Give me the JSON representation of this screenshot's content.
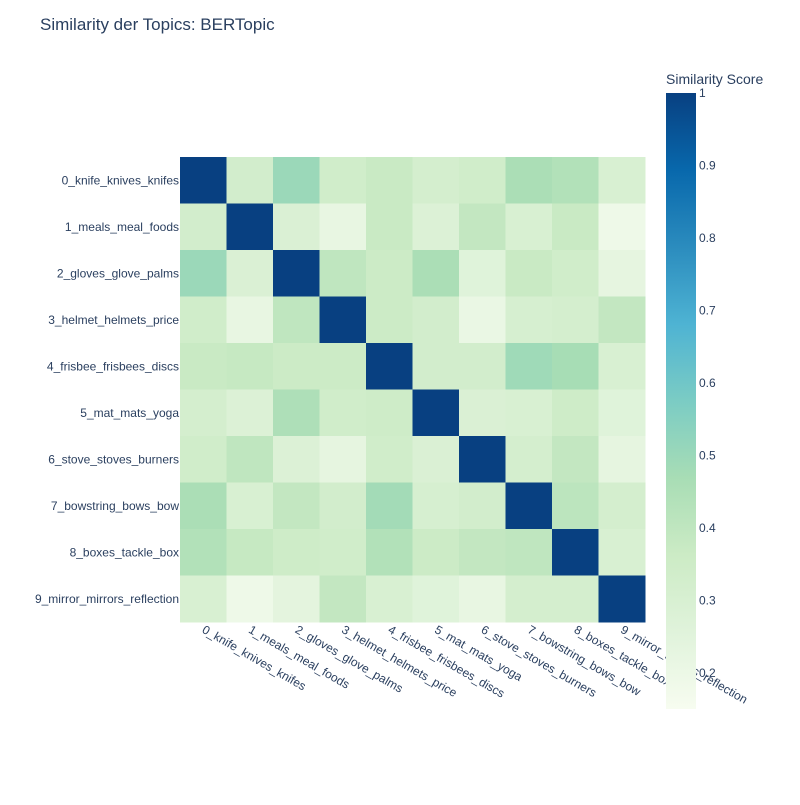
{
  "chart_data": {
    "type": "heatmap",
    "title": "Similarity der Topics: BERTopic",
    "x_categories": [
      "0_knife_knives_knifes",
      "1_meals_meal_foods",
      "2_gloves_glove_palms",
      "3_helmet_helmets_price",
      "4_frisbee_frisbees_discs",
      "5_mat_mats_yoga",
      "6_stove_stoves_burners",
      "7_bowstring_bows_bow",
      "8_boxes_tackle_box",
      "9_mirror_mirrors_reflection"
    ],
    "y_categories": [
      "0_knife_knives_knifes",
      "1_meals_meal_foods",
      "2_gloves_glove_palms",
      "3_helmet_helmets_price",
      "4_frisbee_frisbees_discs",
      "5_mat_mats_yoga",
      "6_stove_stoves_burners",
      "7_bowstring_bows_bow",
      "8_boxes_tackle_box",
      "9_mirror_mirrors_reflection"
    ],
    "values": [
      [
        1.0,
        0.33,
        0.5,
        0.34,
        0.37,
        0.32,
        0.34,
        0.46,
        0.44,
        0.3
      ],
      [
        0.33,
        1.0,
        0.29,
        0.22,
        0.37,
        0.28,
        0.39,
        0.3,
        0.37,
        0.19
      ],
      [
        0.5,
        0.29,
        1.0,
        0.4,
        0.36,
        0.46,
        0.26,
        0.37,
        0.34,
        0.23
      ],
      [
        0.34,
        0.22,
        0.4,
        1.0,
        0.36,
        0.33,
        0.21,
        0.31,
        0.32,
        0.39
      ],
      [
        0.37,
        0.38,
        0.36,
        0.36,
        1.0,
        0.33,
        0.33,
        0.49,
        0.47,
        0.3
      ],
      [
        0.32,
        0.28,
        0.45,
        0.34,
        0.35,
        1.0,
        0.29,
        0.3,
        0.35,
        0.26
      ],
      [
        0.34,
        0.4,
        0.28,
        0.23,
        0.34,
        0.29,
        1.0,
        0.32,
        0.39,
        0.23
      ],
      [
        0.46,
        0.3,
        0.39,
        0.33,
        0.48,
        0.31,
        0.33,
        1.0,
        0.41,
        0.32
      ],
      [
        0.44,
        0.38,
        0.35,
        0.34,
        0.44,
        0.36,
        0.39,
        0.4,
        1.0,
        0.3
      ],
      [
        0.3,
        0.19,
        0.24,
        0.39,
        0.3,
        0.26,
        0.22,
        0.32,
        0.32,
        1.0
      ]
    ],
    "colorbar": {
      "title": "Similarity Score",
      "range": [
        0.15,
        1.0
      ],
      "ticks": [
        0.2,
        0.3,
        0.4,
        0.5,
        0.6,
        0.7,
        0.8,
        0.9,
        1
      ],
      "tick_labels": [
        "0.2",
        "0.3",
        "0.4",
        "0.5",
        "0.6",
        "0.7",
        "0.8",
        "0.9",
        "1"
      ]
    },
    "colorscale": [
      [
        0.0,
        "#f7fcf0"
      ],
      [
        0.125,
        "#e0f3db"
      ],
      [
        0.25,
        "#ccebc5"
      ],
      [
        0.375,
        "#a8ddb5"
      ],
      [
        0.5,
        "#7bccc4"
      ],
      [
        0.625,
        "#4eb3d3"
      ],
      [
        0.75,
        "#2b8cbe"
      ],
      [
        0.875,
        "#0868ac"
      ],
      [
        1.0,
        "#084081"
      ]
    ],
    "colors": {
      "text": "#2a3f5f",
      "title": "#2a3f5f",
      "background": "#ffffff"
    }
  }
}
